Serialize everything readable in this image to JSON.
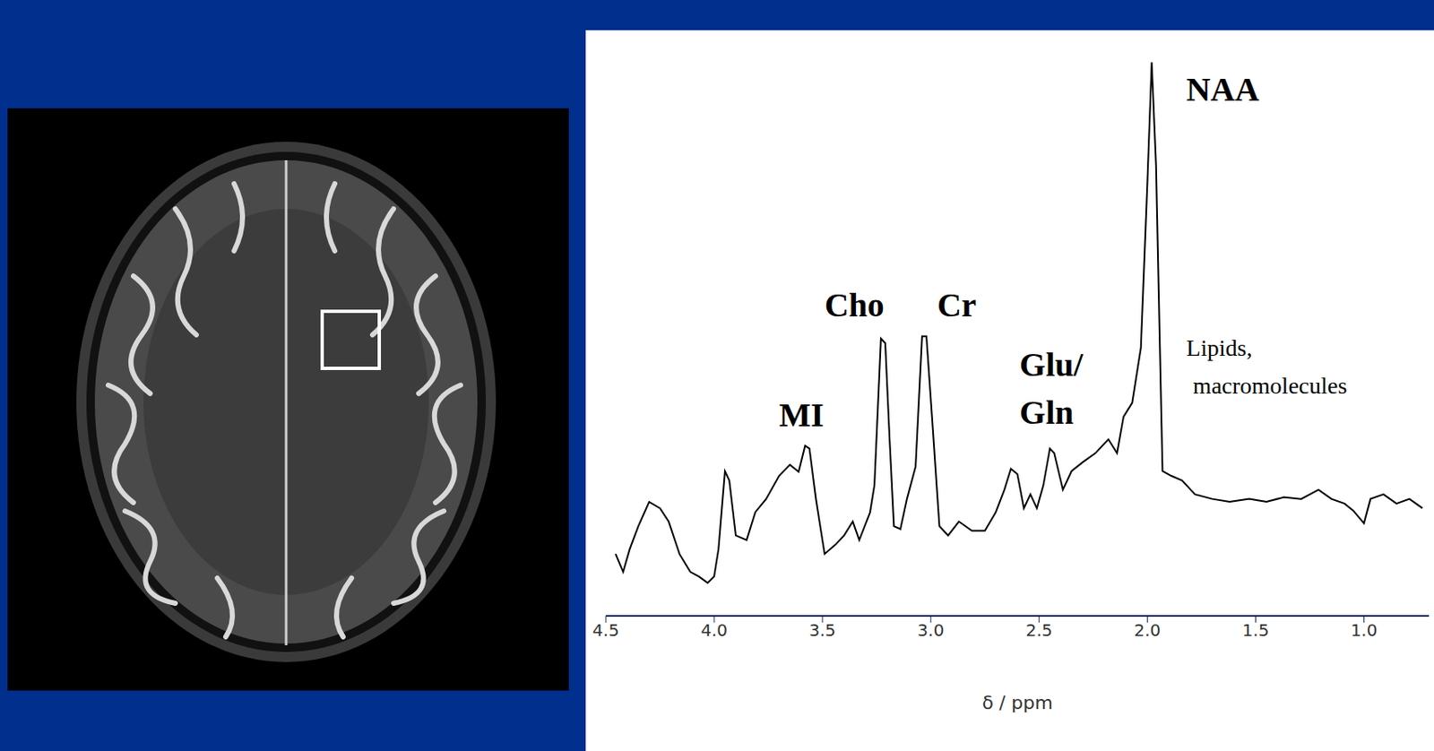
{
  "chart_data": {
    "type": "line",
    "x_label": "δ / ppm",
    "color": "#000000",
    "grid": false,
    "tick_labels": "x",
    "xlim": [
      4.5,
      0.7
    ],
    "xticks": [
      4.5,
      {
        "value": 4,
        "label": "4.0"
      },
      3.5,
      {
        "value": 3,
        "label": "3.0"
      },
      2.5,
      {
        "value": 2,
        "label": "2.0"
      },
      1.5,
      {
        "value": 1,
        "label": "1.0"
      }
    ],
    "ylim": [
      0,
      100
    ],
    "x": [
      4.455,
      4.42,
      4.39,
      4.35,
      4.3,
      4.25,
      4.21,
      4.16,
      4.11,
      4.07,
      4.03,
      4.0,
      3.98,
      3.95,
      3.93,
      3.9,
      3.85,
      3.81,
      3.76,
      3.7,
      3.65,
      3.61,
      3.58,
      3.56,
      3.53,
      3.49,
      3.44,
      3.4,
      3.36,
      3.33,
      3.28,
      3.26,
      3.23,
      3.21,
      3.19,
      3.17,
      3.14,
      3.11,
      3.07,
      3.04,
      3.02,
      2.99,
      2.96,
      2.92,
      2.87,
      2.81,
      2.75,
      2.7,
      2.66,
      2.63,
      2.6,
      2.57,
      2.54,
      2.51,
      2.48,
      2.45,
      2.43,
      2.39,
      2.35,
      2.3,
      2.24,
      2.18,
      2.14,
      2.11,
      2.07,
      2.03,
      2.0,
      1.98,
      1.96,
      1.93,
      1.89,
      1.84,
      1.78,
      1.7,
      1.62,
      1.53,
      1.45,
      1.37,
      1.29,
      1.21,
      1.15,
      1.09,
      1.05,
      1.0,
      0.97,
      0.91,
      0.85,
      0.79,
      0.73
    ],
    "values": [
      10.7,
      7.6,
      11.5,
      15.5,
      19.7,
      18.6,
      16.3,
      10.7,
      7.6,
      6.8,
      5.7,
      6.8,
      11.5,
      25.0,
      23.4,
      13.9,
      13.1,
      17.9,
      20.2,
      24.2,
      26.1,
      24.9,
      29.4,
      28.9,
      20.2,
      10.7,
      12.3,
      13.9,
      16.3,
      13.1,
      17.9,
      22.6,
      47.9,
      47.1,
      30.5,
      15.5,
      15.0,
      20.2,
      25.8,
      48.3,
      48.3,
      32.1,
      15.5,
      13.9,
      16.3,
      14.7,
      14.7,
      17.9,
      21.8,
      25.4,
      24.5,
      18.6,
      21.0,
      18.6,
      22.6,
      28.9,
      28.1,
      21.8,
      25.0,
      26.5,
      28.1,
      30.5,
      28.1,
      34.4,
      36.8,
      46.3,
      74.7,
      95.6,
      77.9,
      25.0,
      24.2,
      23.4,
      21.0,
      20.2,
      19.7,
      20.2,
      19.7,
      20.5,
      20.2,
      21.8,
      20.2,
      19.4,
      18.2,
      16.0,
      20.2,
      21.0,
      19.4,
      20.2,
      18.6
    ],
    "annotations": [
      {
        "text": "NAA",
        "x": 1.82,
        "y": 91
      },
      {
        "text": "Cho",
        "x": 3.49,
        "y": 53.7
      },
      {
        "text": "Cr",
        "x": 2.97,
        "y": 53.7
      },
      {
        "text": "MI",
        "x": 3.7,
        "y": 34.8
      },
      {
        "text": "Glu/\nGln",
        "x": 2.59,
        "y": 39.3
      },
      {
        "text": "Lipids,\nmacromolecules",
        "x": 1.82,
        "y": 43.1
      }
    ]
  }
}
